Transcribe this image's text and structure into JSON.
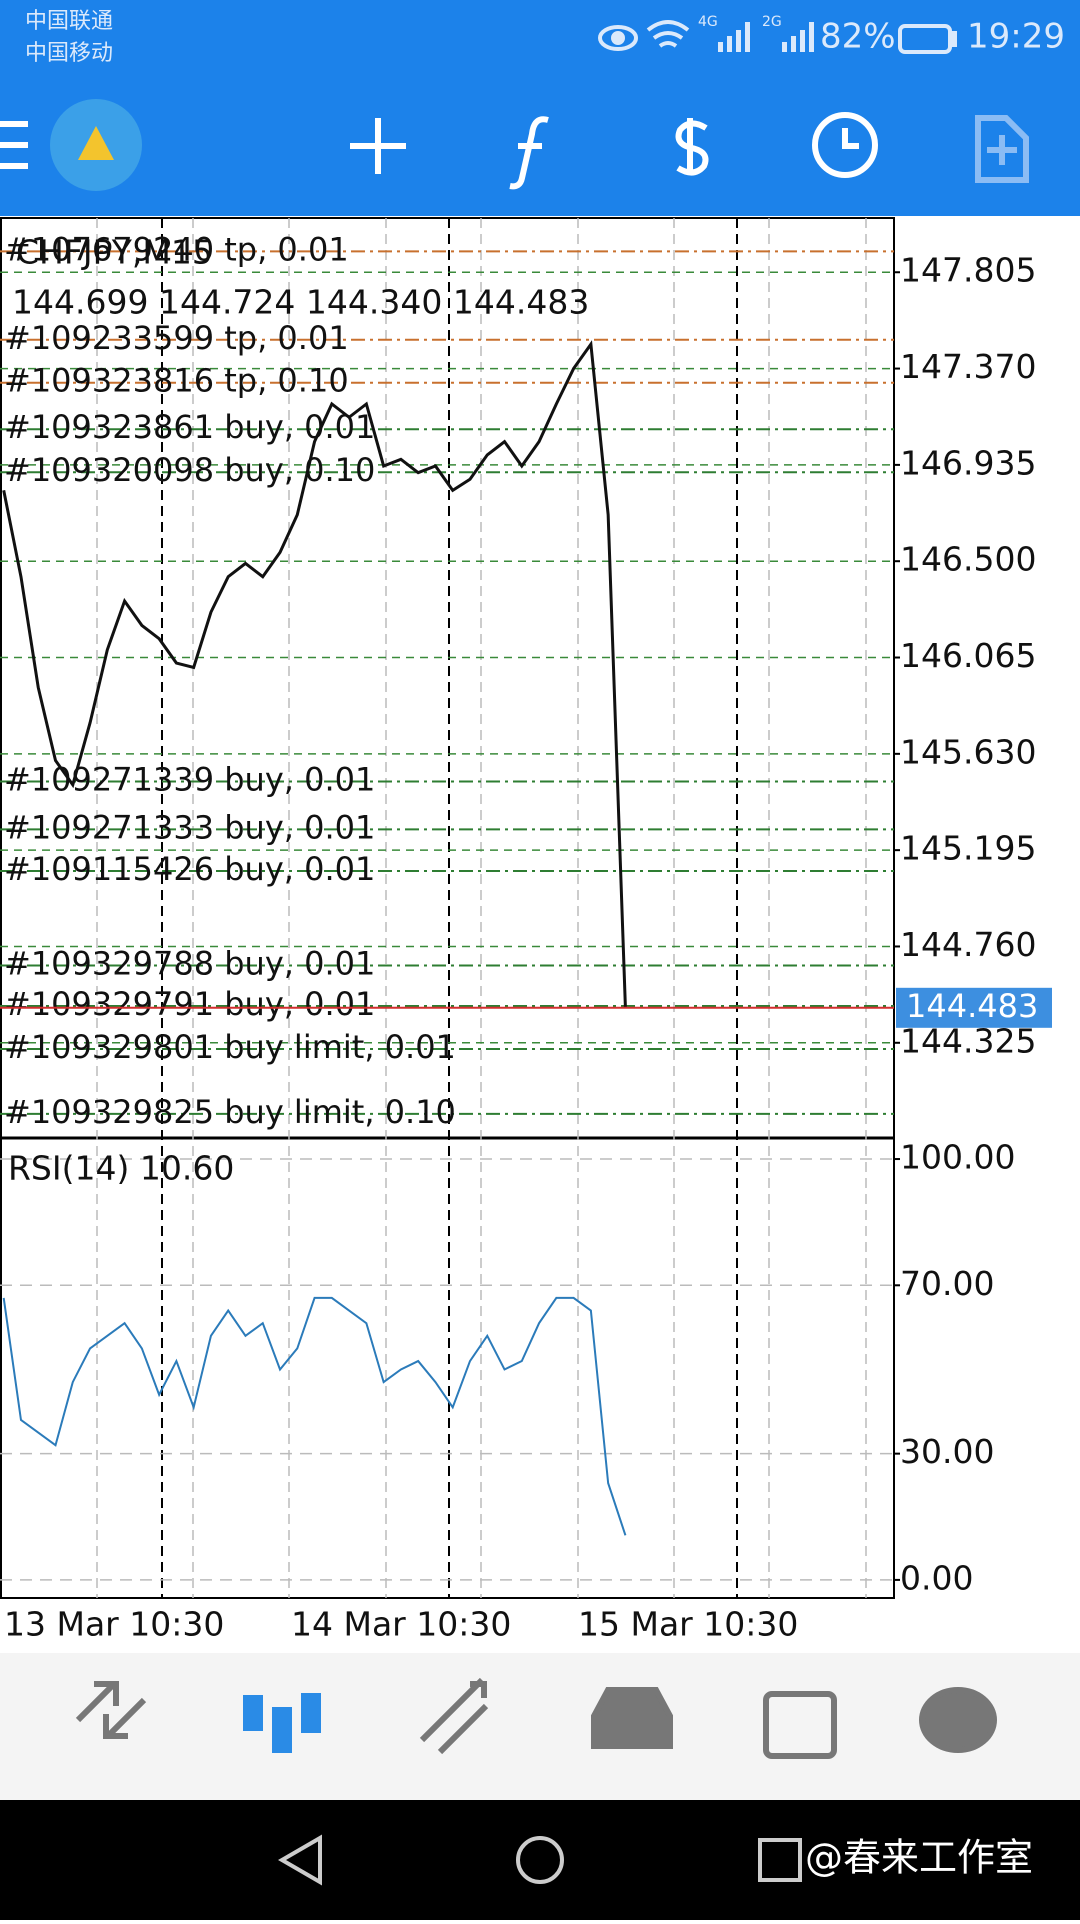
{
  "status_bar": {
    "carrier_1": "中国联通",
    "carrier_2": "中国移动",
    "network_1": "4G",
    "network_2": "2G",
    "battery": "82%",
    "time": "19:29"
  },
  "chart_data": [
    {
      "type": "line",
      "title": "CHFJPY,M15",
      "subtitle": "144.699 144.724 144.340 144.483",
      "color": "#111111",
      "values": [
        146.82,
        146.43,
        145.93,
        145.6,
        145.49,
        145.77,
        146.1,
        146.32,
        146.21,
        146.15,
        146.04,
        146.02,
        146.27,
        146.43,
        146.49,
        146.43,
        146.54,
        146.71,
        147.04,
        147.21,
        147.15,
        147.21,
        146.93,
        146.96,
        146.9,
        146.93,
        146.82,
        146.87,
        146.98,
        147.04,
        146.93,
        147.04,
        147.21,
        147.37,
        147.48,
        146.71,
        144.483
      ],
      "ylim": [
        143.895,
        148.05
      ],
      "yticks": [
        147.805,
        {
          "value": 147.37,
          "label": "147.370"
        },
        146.935,
        {
          "value": 146.5,
          "label": "146.500"
        },
        146.065,
        {
          "value": 145.63,
          "label": "145.630"
        },
        145.195,
        {
          "value": 144.76,
          "label": "144.760"
        },
        144.325
      ],
      "orders": [
        {
          "label": "#107679240 tp, 0.01",
          "price": 147.899,
          "color": "#c8702e"
        },
        {
          "label": "#109233599 tp, 0.01",
          "price": 147.5,
          "color": "#c8702e"
        },
        {
          "label": "#109323816 tp, 0.10",
          "price": 147.306,
          "color": "#c8702e"
        },
        {
          "label": "#109323861 buy, 0.01",
          "price": 147.096,
          "color": "#2e7d32"
        },
        {
          "label": "#109320098 buy, 0.10",
          "price": 146.902,
          "color": "#2e7d32"
        },
        {
          "label": "#109271339 buy, 0.01",
          "price": 145.505,
          "color": "#2e7d32"
        },
        {
          "label": "#109271333 buy, 0.01",
          "price": 145.289,
          "color": "#2e7d32"
        },
        {
          "label": "#109115426 buy, 0.01",
          "price": 145.101,
          "color": "#2e7d32"
        },
        {
          "label": "#109329788 buy, 0.01",
          "price": 144.674,
          "color": "#2e7d32"
        },
        {
          "label": "#109329791 buy, 0.01",
          "price": 144.491,
          "color": "#2e7d32"
        },
        {
          "label": "#109329801 buy limit, 0.01",
          "price": 144.297,
          "color": "#2e7d32"
        },
        {
          "label": "#109329825 buy limit, 0.10",
          "price": 144.004,
          "color": "#2e7d32"
        }
      ],
      "last_price": 144.483,
      "x_labels": [
        "13 Mar 10:30",
        "14 Mar 10:30",
        "15 Mar 10:30"
      ]
    },
    {
      "type": "line",
      "title": "RSI(14) 10.60",
      "color": "#2b7bba",
      "values": [
        67,
        38,
        35,
        32,
        47,
        55,
        58,
        61,
        55,
        44,
        52,
        41,
        58,
        64,
        58,
        61,
        50,
        55,
        67,
        67,
        64,
        61,
        47,
        50,
        52,
        47,
        41,
        52,
        58,
        50,
        52,
        61,
        67,
        67,
        64,
        23,
        10.6
      ],
      "ylim": [
        -4.3,
        105
      ],
      "yticks": [
        {
          "value": 100,
          "label": "100.00"
        },
        {
          "value": 70,
          "label": "70.00"
        },
        {
          "value": 30,
          "label": "30.00"
        },
        {
          "value": 0,
          "label": "0.00"
        }
      ]
    }
  ],
  "watermark": "@春来工作室"
}
